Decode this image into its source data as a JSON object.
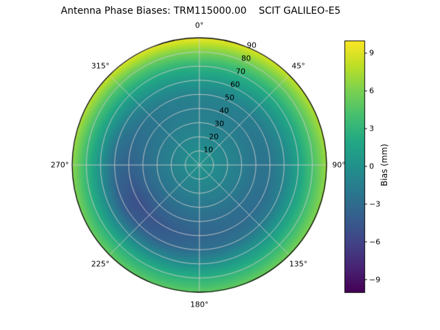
{
  "chart_data": {
    "type": "heatmap",
    "projection": "polar",
    "title": "Antenna Phase Biases: TRM115000.00    SCIT GALILEO-E5",
    "angular_ticks": [
      {
        "label": "0°",
        "deg": 0
      },
      {
        "label": "45°",
        "deg": 45
      },
      {
        "label": "90°",
        "deg": 90
      },
      {
        "label": "135°",
        "deg": 135
      },
      {
        "label": "180°",
        "deg": 180
      },
      {
        "label": "225°",
        "deg": 225
      },
      {
        "label": "270°",
        "deg": 270
      },
      {
        "label": "315°",
        "deg": 315
      }
    ],
    "radial_ticks": {
      "label_azimuth_deg": 22.5,
      "values": [
        10,
        20,
        30,
        40,
        50,
        60,
        70,
        80,
        90
      ],
      "labels": [
        "10",
        "20",
        "30",
        "40",
        "50",
        "60",
        "70",
        "80",
        "90"
      ]
    },
    "radial_range": [
      0,
      90
    ],
    "grid": {
      "azimuth_deg": [
        0,
        30,
        60,
        90,
        120,
        150,
        180,
        210,
        240,
        270,
        300,
        330,
        360
      ],
      "zenith_deg": [
        0,
        10,
        20,
        30,
        40,
        50,
        60,
        70,
        80,
        90
      ],
      "bias_mm": [
        [
          0.2,
          -0.3,
          -0.8,
          -1.2,
          -1.5,
          -1.0,
          0.8,
          3.0,
          6.0,
          9.5
        ],
        [
          0.2,
          -0.3,
          -0.8,
          -1.3,
          -1.6,
          -1.2,
          0.5,
          2.6,
          5.5,
          8.8
        ],
        [
          0.2,
          -0.4,
          -0.9,
          -1.5,
          -2.0,
          -1.8,
          -0.2,
          2.0,
          4.8,
          7.8
        ],
        [
          0.2,
          -0.4,
          -1.0,
          -1.6,
          -2.4,
          -2.2,
          -0.8,
          1.5,
          4.2,
          7.0
        ],
        [
          0.2,
          -0.5,
          -1.1,
          -1.8,
          -2.6,
          -2.8,
          -1.5,
          1.0,
          3.6,
          6.2
        ],
        [
          0.2,
          -0.5,
          -1.2,
          -2.0,
          -2.8,
          -3.2,
          -2.2,
          0.4,
          3.0,
          5.5
        ],
        [
          0.2,
          -0.6,
          -1.3,
          -2.1,
          -3.0,
          -3.6,
          -2.8,
          -0.2,
          2.8,
          5.0
        ],
        [
          0.2,
          -0.6,
          -1.4,
          -2.3,
          -3.4,
          -4.5,
          -3.8,
          -0.8,
          2.5,
          5.0
        ],
        [
          0.2,
          -0.6,
          -1.5,
          -2.4,
          -3.8,
          -5.2,
          -4.5,
          -1.0,
          2.5,
          5.4
        ],
        [
          0.2,
          -0.5,
          -1.3,
          -2.1,
          -3.0,
          -3.8,
          -3.0,
          0.0,
          3.2,
          6.5
        ],
        [
          0.2,
          -0.4,
          -1.1,
          -1.8,
          -2.4,
          -2.6,
          -1.5,
          1.2,
          4.2,
          7.8
        ],
        [
          0.2,
          -0.4,
          -0.9,
          -1.4,
          -1.8,
          -1.6,
          0.0,
          2.2,
          5.2,
          9.0
        ],
        [
          0.2,
          -0.3,
          -0.8,
          -1.2,
          -1.5,
          -1.0,
          0.8,
          3.0,
          6.0,
          9.5
        ]
      ]
    },
    "colorbar": {
      "label": "Bias (mm)",
      "vmin": -10,
      "vmax": 10,
      "tick_values": [
        9,
        6,
        3,
        0,
        -3,
        -6,
        -9
      ],
      "tick_labels": [
        "9",
        "6",
        "3",
        "0",
        "−3",
        "−6",
        "−9"
      ]
    },
    "colormap": {
      "name": "viridis",
      "stops": [
        [
          0.0,
          "#440154"
        ],
        [
          0.1,
          "#482475"
        ],
        [
          0.2,
          "#414487"
        ],
        [
          0.3,
          "#355f8d"
        ],
        [
          0.4,
          "#2a788e"
        ],
        [
          0.5,
          "#21918c"
        ],
        [
          0.6,
          "#22a884"
        ],
        [
          0.7,
          "#44bf70"
        ],
        [
          0.8,
          "#7ad151"
        ],
        [
          0.9,
          "#bddf26"
        ],
        [
          1.0,
          "#fde725"
        ]
      ]
    },
    "grid_line_color": "#cccccc",
    "outline_color": "#000000",
    "background": "#ffffff"
  }
}
